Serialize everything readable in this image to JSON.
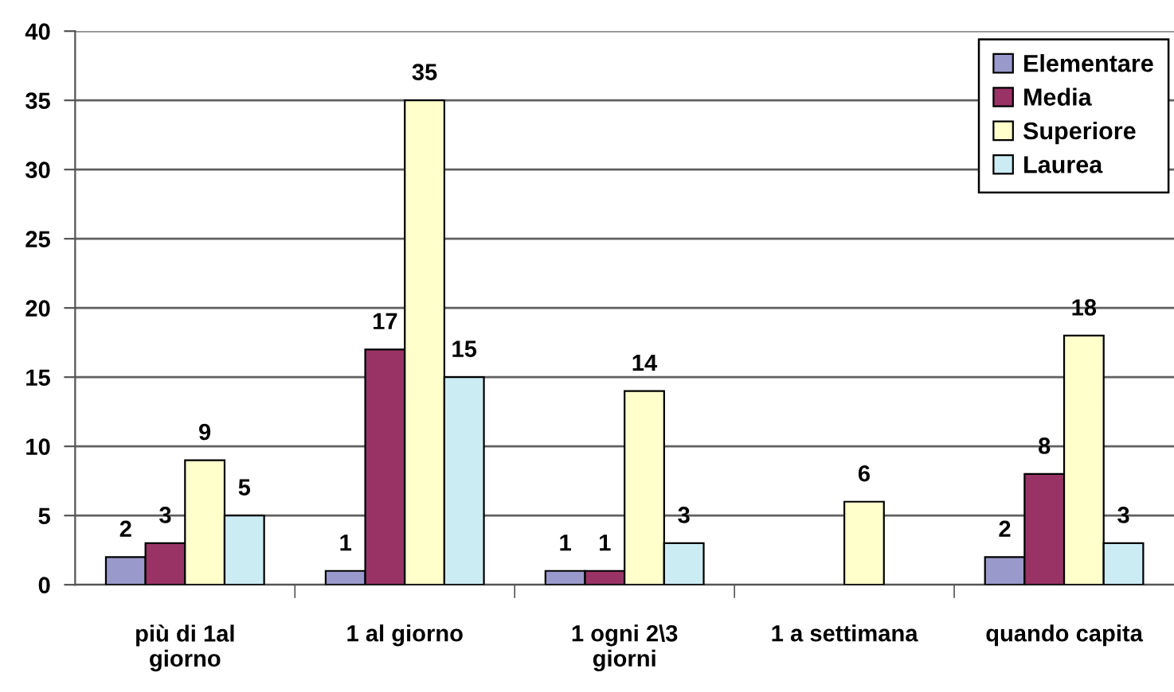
{
  "chart_data": {
    "type": "bar",
    "categories": [
      "più di 1al\ngiorno",
      "1 al giorno",
      "1 ogni 2\\3\ngiorni",
      "1 a settimana",
      "quando capita"
    ],
    "series": [
      {
        "name": "Elementare",
        "color": "#9999cc",
        "values": [
          2,
          1,
          1,
          null,
          2
        ]
      },
      {
        "name": "Media",
        "color": "#993366",
        "values": [
          3,
          17,
          1,
          null,
          8
        ]
      },
      {
        "name": "Superiore",
        "color": "#ffffcc",
        "values": [
          9,
          35,
          14,
          6,
          18
        ]
      },
      {
        "name": "Laurea",
        "color": "#ccecf4",
        "values": [
          5,
          15,
          3,
          null,
          3
        ]
      }
    ],
    "ylim": [
      0,
      40
    ],
    "yticks": [
      0,
      5,
      10,
      15,
      20,
      25,
      30,
      35,
      40
    ],
    "grid": "y",
    "legend": "top right",
    "data_labels": true
  }
}
